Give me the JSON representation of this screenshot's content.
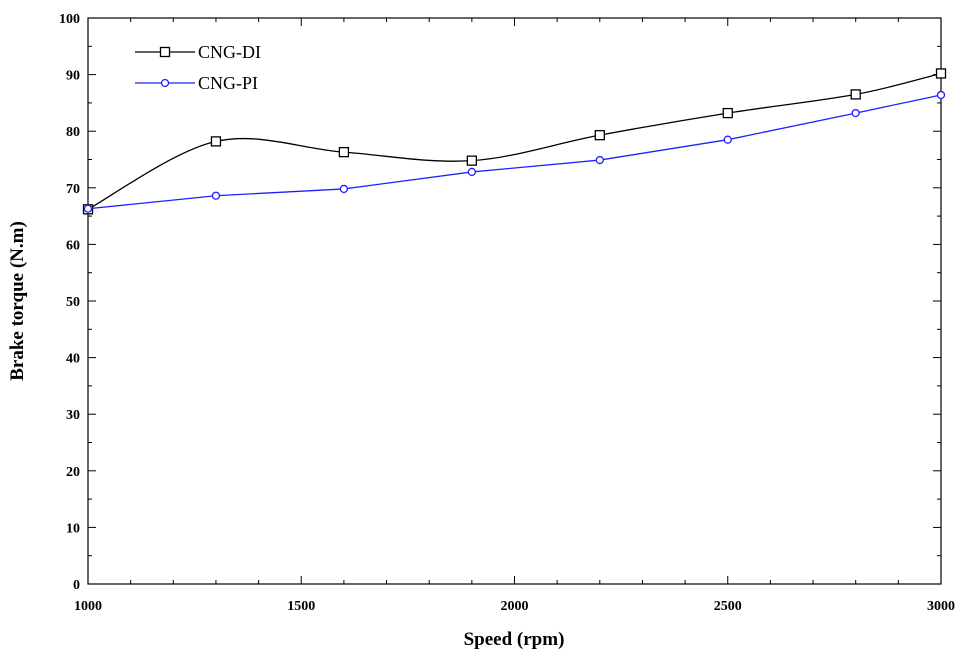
{
  "chart_data": {
    "type": "line",
    "title": "",
    "xlabel": "Speed (rpm)",
    "ylabel": "Brake torque (N.m)",
    "xlim": [
      1000,
      3000
    ],
    "ylim": [
      0,
      100
    ],
    "x_ticks": [
      1000,
      1500,
      2000,
      2500,
      3000
    ],
    "y_ticks": [
      0,
      10,
      20,
      30,
      40,
      50,
      60,
      70,
      80,
      90,
      100
    ],
    "grid": false,
    "legend_position": "top-left",
    "series": [
      {
        "name": "CNG-DI",
        "color": "#000000",
        "marker": "square",
        "smooth": true,
        "x": [
          1000,
          1300,
          1600,
          1900,
          2200,
          2500,
          2800,
          3000
        ],
        "y": [
          66.2,
          78.2,
          76.3,
          74.8,
          79.3,
          83.2,
          86.5,
          90.2
        ]
      },
      {
        "name": "CNG-PI",
        "color": "#2020ff",
        "marker": "circle",
        "smooth": false,
        "x": [
          1000,
          1300,
          1600,
          1900,
          2200,
          2500,
          2800,
          3000
        ],
        "y": [
          66.3,
          68.6,
          69.8,
          72.8,
          74.9,
          78.5,
          83.2,
          86.4
        ]
      }
    ]
  }
}
